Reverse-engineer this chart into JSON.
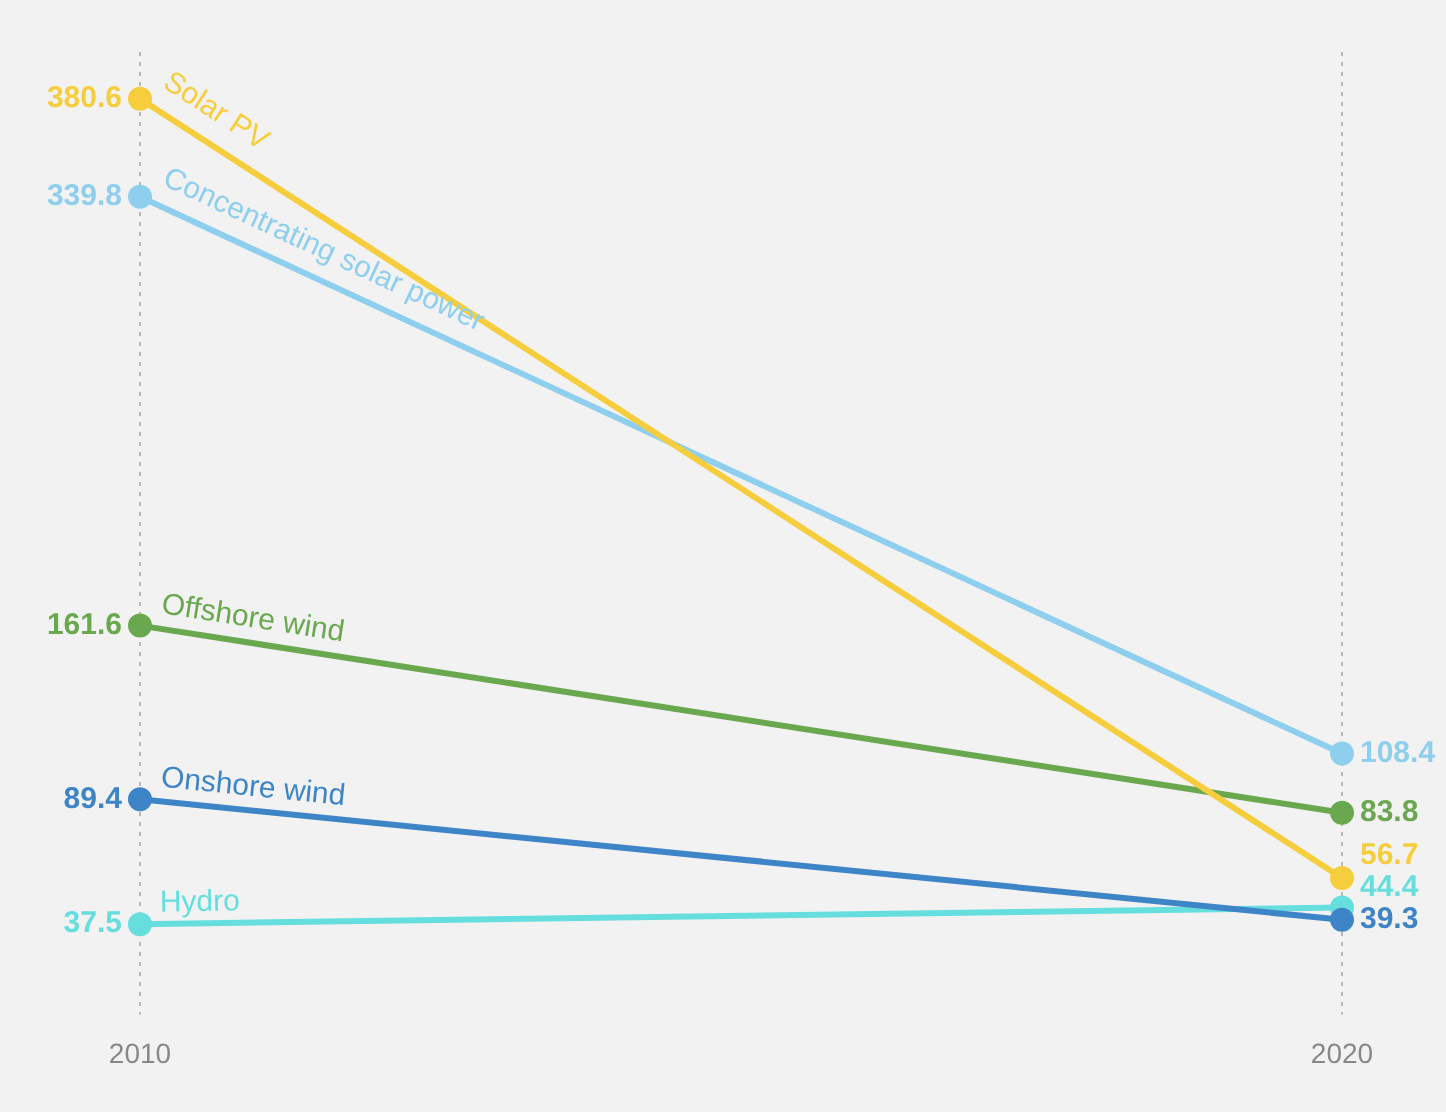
{
  "chart_data": {
    "type": "line",
    "categories": [
      "2010",
      "2020"
    ],
    "series": [
      {
        "name": "Solar PV",
        "color": "#f6cd3c",
        "values": [
          380.6,
          56.7
        ]
      },
      {
        "name": "Concentrating solar power",
        "color": "#8fcfee",
        "values": [
          339.8,
          108.4
        ]
      },
      {
        "name": "Offshore wind",
        "color": "#6aa84f",
        "values": [
          161.6,
          83.8
        ]
      },
      {
        "name": "Onshore wind",
        "color": "#3d85c6",
        "values": [
          89.4,
          39.3
        ]
      },
      {
        "name": "Hydro",
        "color": "#66dede",
        "values": [
          37.5,
          44.4
        ]
      }
    ],
    "data_labels": true,
    "grid": "x",
    "legend": false,
    "marker": "circle",
    "line_style": "solid"
  }
}
